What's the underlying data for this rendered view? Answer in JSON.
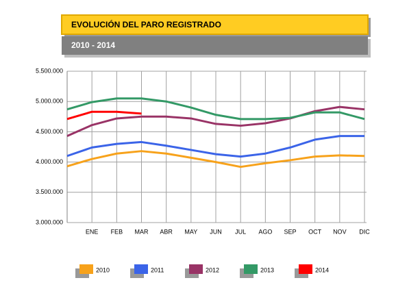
{
  "chart_data": {
    "type": "line",
    "title": "EVOLUCIÓN DEL PARO REGISTRADO",
    "subtitle": "2010 - 2014",
    "categories": [
      null,
      "ENE",
      "FEB",
      "MAR",
      "ABR",
      "MAY",
      "JUN",
      "JUL",
      "AGO",
      "SEP",
      "OCT",
      "NOV",
      "DIC"
    ],
    "series": [
      {
        "name": "2010",
        "color": "#f7a21b",
        "values": [
          3930000,
          4050000,
          4140000,
          4180000,
          4140000,
          4070000,
          4000000,
          3920000,
          3980000,
          4030000,
          4090000,
          4110000,
          4100000
        ]
      },
      {
        "name": "2011",
        "color": "#3b64e8",
        "values": [
          4100000,
          4240000,
          4300000,
          4330000,
          4270000,
          4200000,
          4130000,
          4090000,
          4140000,
          4240000,
          4370000,
          4430000,
          4430000
        ]
      },
      {
        "name": "2012",
        "color": "#993366",
        "values": [
          4430000,
          4610000,
          4720000,
          4750000,
          4750000,
          4720000,
          4630000,
          4600000,
          4640000,
          4720000,
          4840000,
          4910000,
          4870000
        ]
      },
      {
        "name": "2013",
        "color": "#339966",
        "values": [
          4870000,
          4990000,
          5050000,
          5050000,
          5000000,
          4900000,
          4780000,
          4710000,
          4710000,
          4730000,
          4820000,
          4820000,
          4710000
        ]
      },
      {
        "name": "2014",
        "color": "#ff0000",
        "values": [
          4710000,
          4830000,
          4830000,
          4800000,
          null,
          null,
          null,
          null,
          null,
          null,
          null,
          null,
          null
        ]
      }
    ],
    "ylim": [
      3000000,
      5500000
    ],
    "yticks": [
      {
        "value": 3000000,
        "label": "3.000.000"
      },
      {
        "value": 3500000,
        "label": "3.500.000"
      },
      {
        "value": 4000000,
        "label": "4.000.000"
      },
      {
        "value": 4500000,
        "label": "4.500.000"
      },
      {
        "value": 5000000,
        "label": "5.000.000"
      },
      {
        "value": 5500000,
        "label": "5.500.000"
      }
    ],
    "grid": true
  }
}
